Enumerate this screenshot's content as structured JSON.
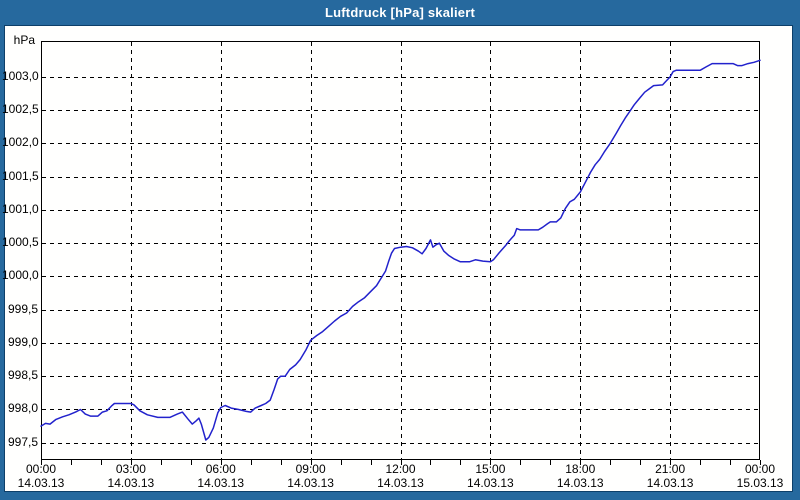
{
  "window": {
    "title": "Luftdruck [hPa] skaliert",
    "titlebar_color": "#26699e",
    "frame_color": "#26699e",
    "frame_edge_color": "#0d3f69",
    "panel_background": "#fffffe"
  },
  "chart_data": {
    "type": "line",
    "title": "Luftdruck [hPa] skaliert",
    "ylabel": "hPa",
    "xlabel": "",
    "grid": true,
    "legend": false,
    "axis_color": "#000000",
    "grid_color": "#000000",
    "line_color": "#2222cc",
    "x_range_hours": [
      0,
      24
    ],
    "y_range": [
      997.24,
      1003.54
    ],
    "y_grid_step": 0.5,
    "x_grid_step_hours": 3,
    "x_minor_tick_hours": 1,
    "y_ticks": [
      {
        "label": "1003,0",
        "value": 1003.0
      },
      {
        "label": "1002,5",
        "value": 1002.5
      },
      {
        "label": "1002,0",
        "value": 1002.0
      },
      {
        "label": "1001,5",
        "value": 1001.5
      },
      {
        "label": "1001,0",
        "value": 1001.0
      },
      {
        "label": "1000,5",
        "value": 1000.5
      },
      {
        "label": "1000,0",
        "value": 1000.0
      },
      {
        "label": "999,5",
        "value": 999.5
      },
      {
        "label": "999,0",
        "value": 999.0
      },
      {
        "label": "998,5",
        "value": 998.5
      },
      {
        "label": "998,0",
        "value": 998.0
      },
      {
        "label": "997,5",
        "value": 997.5
      }
    ],
    "x_ticks": [
      {
        "hour": 0,
        "time": "00:00",
        "date": "14.03.13"
      },
      {
        "hour": 3,
        "time": "03:00",
        "date": "14.03.13"
      },
      {
        "hour": 6,
        "time": "06:00",
        "date": "14.03.13"
      },
      {
        "hour": 9,
        "time": "09:00",
        "date": "14.03.13"
      },
      {
        "hour": 12,
        "time": "12:00",
        "date": "14.03.13"
      },
      {
        "hour": 15,
        "time": "15:00",
        "date": "14.03.13"
      },
      {
        "hour": 18,
        "time": "18:00",
        "date": "14.03.13"
      },
      {
        "hour": 21,
        "time": "21:00",
        "date": "14.03.13"
      },
      {
        "hour": 24,
        "time": "00:00",
        "date": "15.03.13"
      }
    ],
    "series": [
      {
        "name": "Luftdruck [hPa]",
        "color": "#2222cc",
        "points": [
          [
            0.0,
            997.75
          ],
          [
            0.15,
            997.79
          ],
          [
            0.3,
            997.78
          ],
          [
            0.5,
            997.85
          ],
          [
            0.72,
            997.89
          ],
          [
            0.93,
            997.92
          ],
          [
            1.15,
            997.96
          ],
          [
            1.32,
            998.0
          ],
          [
            1.48,
            997.93
          ],
          [
            1.65,
            997.9
          ],
          [
            1.9,
            997.9
          ],
          [
            2.05,
            997.96
          ],
          [
            2.2,
            997.98
          ],
          [
            2.35,
            998.05
          ],
          [
            2.45,
            998.09
          ],
          [
            3.0,
            998.09
          ],
          [
            3.1,
            998.07
          ],
          [
            3.3,
            997.98
          ],
          [
            3.55,
            997.92
          ],
          [
            3.9,
            997.88
          ],
          [
            4.3,
            997.88
          ],
          [
            4.55,
            997.93
          ],
          [
            4.72,
            997.96
          ],
          [
            4.9,
            997.86
          ],
          [
            5.05,
            997.78
          ],
          [
            5.18,
            997.83
          ],
          [
            5.27,
            997.87
          ],
          [
            5.35,
            997.78
          ],
          [
            5.5,
            997.54
          ],
          [
            5.6,
            997.58
          ],
          [
            5.75,
            997.72
          ],
          [
            5.9,
            997.95
          ],
          [
            6.0,
            998.03
          ],
          [
            6.15,
            998.06
          ],
          [
            6.35,
            998.02
          ],
          [
            6.6,
            998.0
          ],
          [
            6.85,
            997.97
          ],
          [
            7.0,
            997.96
          ],
          [
            7.15,
            998.02
          ],
          [
            7.35,
            998.06
          ],
          [
            7.5,
            998.09
          ],
          [
            7.65,
            998.14
          ],
          [
            7.78,
            998.3
          ],
          [
            7.9,
            998.46
          ],
          [
            8.0,
            998.5
          ],
          [
            8.15,
            998.5
          ],
          [
            8.3,
            998.6
          ],
          [
            8.5,
            998.67
          ],
          [
            8.65,
            998.75
          ],
          [
            8.85,
            998.9
          ],
          [
            9.0,
            999.04
          ],
          [
            9.2,
            999.11
          ],
          [
            9.4,
            999.17
          ],
          [
            9.6,
            999.25
          ],
          [
            9.8,
            999.33
          ],
          [
            10.0,
            999.4
          ],
          [
            10.2,
            999.45
          ],
          [
            10.4,
            999.55
          ],
          [
            10.6,
            999.62
          ],
          [
            10.8,
            999.68
          ],
          [
            11.0,
            999.77
          ],
          [
            11.2,
            999.86
          ],
          [
            11.35,
            999.97
          ],
          [
            11.5,
            1000.08
          ],
          [
            11.6,
            1000.22
          ],
          [
            11.7,
            1000.35
          ],
          [
            11.8,
            1000.42
          ],
          [
            12.0,
            1000.44
          ],
          [
            12.2,
            1000.45
          ],
          [
            12.4,
            1000.43
          ],
          [
            12.6,
            1000.38
          ],
          [
            12.72,
            1000.34
          ],
          [
            12.85,
            1000.42
          ],
          [
            13.0,
            1000.55
          ],
          [
            13.08,
            1000.44
          ],
          [
            13.2,
            1000.48
          ],
          [
            13.3,
            1000.5
          ],
          [
            13.45,
            1000.38
          ],
          [
            13.6,
            1000.32
          ],
          [
            13.8,
            1000.26
          ],
          [
            14.0,
            1000.22
          ],
          [
            14.3,
            1000.22
          ],
          [
            14.5,
            1000.25
          ],
          [
            14.75,
            1000.23
          ],
          [
            15.0,
            1000.22
          ],
          [
            15.1,
            1000.25
          ],
          [
            15.3,
            1000.36
          ],
          [
            15.5,
            1000.46
          ],
          [
            15.6,
            1000.52
          ],
          [
            15.7,
            1000.57
          ],
          [
            15.8,
            1000.62
          ],
          [
            15.88,
            1000.72
          ],
          [
            16.0,
            1000.7
          ],
          [
            16.3,
            1000.7
          ],
          [
            16.6,
            1000.7
          ],
          [
            16.75,
            1000.74
          ],
          [
            16.9,
            1000.79
          ],
          [
            17.0,
            1000.82
          ],
          [
            17.2,
            1000.82
          ],
          [
            17.35,
            1000.88
          ],
          [
            17.5,
            1001.02
          ],
          [
            17.65,
            1001.12
          ],
          [
            17.8,
            1001.16
          ],
          [
            18.0,
            1001.27
          ],
          [
            18.2,
            1001.44
          ],
          [
            18.35,
            1001.57
          ],
          [
            18.5,
            1001.68
          ],
          [
            18.65,
            1001.76
          ],
          [
            18.8,
            1001.87
          ],
          [
            19.0,
            1002.0
          ],
          [
            19.2,
            1002.15
          ],
          [
            19.35,
            1002.27
          ],
          [
            19.5,
            1002.38
          ],
          [
            19.65,
            1002.48
          ],
          [
            19.8,
            1002.58
          ],
          [
            20.0,
            1002.69
          ],
          [
            20.15,
            1002.77
          ],
          [
            20.3,
            1002.82
          ],
          [
            20.45,
            1002.87
          ],
          [
            20.75,
            1002.88
          ],
          [
            20.85,
            1002.93
          ],
          [
            21.0,
            1003.0
          ],
          [
            21.1,
            1003.08
          ],
          [
            21.2,
            1003.1
          ],
          [
            21.6,
            1003.1
          ],
          [
            22.0,
            1003.1
          ],
          [
            22.2,
            1003.15
          ],
          [
            22.4,
            1003.2
          ],
          [
            22.8,
            1003.2
          ],
          [
            23.1,
            1003.2
          ],
          [
            23.25,
            1003.17
          ],
          [
            23.4,
            1003.17
          ],
          [
            23.6,
            1003.2
          ],
          [
            23.8,
            1003.22
          ],
          [
            24.0,
            1003.25
          ]
        ]
      }
    ]
  }
}
